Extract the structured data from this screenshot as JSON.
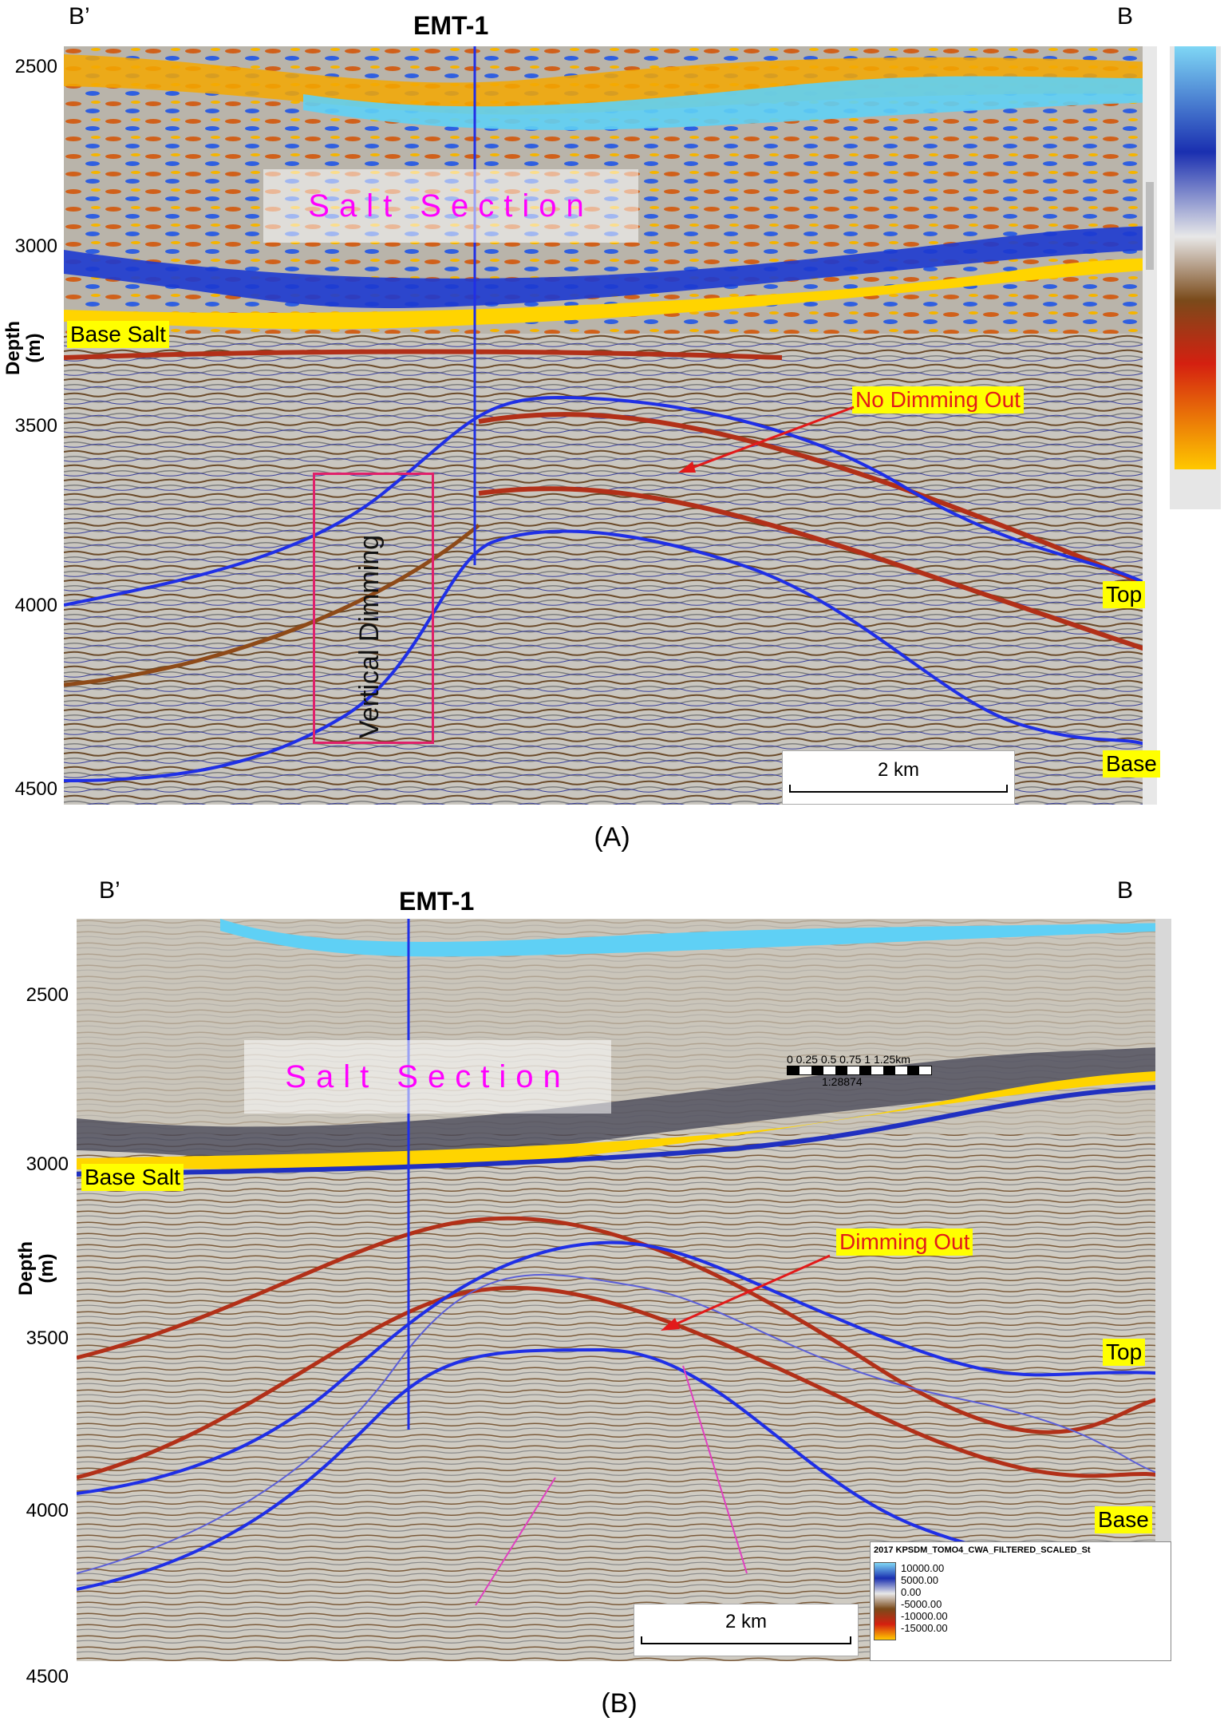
{
  "panel_a": {
    "corner_left": "B’",
    "corner_right": "B",
    "well_name": "EMT-1",
    "depth_ticks": [
      "2500",
      "3000",
      "3500",
      "4000",
      "4500"
    ],
    "axis_label_line1": "Depth",
    "axis_label_line2": "(m)",
    "salt_section": "Salt Section",
    "base_salt": "Base Salt",
    "annotation": "No Dimming Out",
    "vertical_dimming": "Vertical Dimming",
    "top_label": "Top",
    "base_label": "Base",
    "scale_label": "2 km",
    "caption": "(A)"
  },
  "panel_b": {
    "corner_left": "B’",
    "corner_right": "B",
    "well_name": "EMT-1",
    "depth_ticks": [
      "2500",
      "3000",
      "3500",
      "4000",
      "4500"
    ],
    "axis_label_line1": "Depth",
    "axis_label_line2": "(m)",
    "salt_section": "Salt Section",
    "base_salt": "Base Salt",
    "annotation": "Dimming Out",
    "top_label": "Top",
    "base_label": "Base",
    "scale_label": "2 km",
    "mini_scale_ticks": "0  0.25 0.5 0.75  1  1.25km",
    "mini_scale_ratio": "1:28874",
    "legend_title": "2017 KPSDM_TOMO4_CWA_FILTERED_SCALED_St",
    "legend_values": [
      "10000.00",
      "5000.00",
      "0.00",
      "-5000.00",
      "-10000.00",
      "-15000.00"
    ],
    "caption": "(B)"
  },
  "colors": {
    "horizon_blue": "#1f2fe6",
    "annotation_red": "#e21a1a",
    "label_yellow": "#ffff00",
    "box_pink": "#e0206a",
    "salt_magenta": "#ff00ff"
  }
}
